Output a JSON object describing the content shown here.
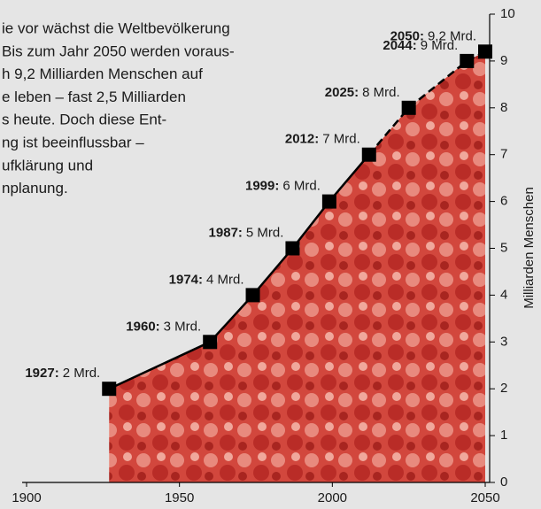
{
  "chart_data": {
    "type": "line",
    "text_lines": [
      "ie vor wächst die Weltbevölkerung",
      "Bis zum Jahr 2050 werden voraus-",
      "h 9,2 Milliarden Menschen auf",
      "e leben – fast 2,5 Milliarden",
      "s heute. Doch diese Ent-",
      "ng ist beeinflussbar –",
      "ufklärung und",
      "nplanung."
    ],
    "y_axis_label": "Milliarden Menschen",
    "x": [
      1927,
      1960,
      1974,
      1987,
      1999,
      2012,
      2025,
      2044,
      2050
    ],
    "point_labels": [
      "1927:",
      "1960:",
      "1974:",
      "1987:",
      "1999:",
      "2012:",
      "2025:",
      "2044:",
      "2050:"
    ],
    "values": [
      2,
      3,
      4,
      5,
      6,
      7,
      8,
      9,
      9.2
    ],
    "value_labels": [
      "2 Mrd.",
      "3 Mrd.",
      "4 Mrd.",
      "5 Mrd.",
      "6 Mrd.",
      "7 Mrd.",
      "8 Mrd.",
      "9 Mrd.",
      "9,2 Mrd."
    ],
    "dashed_from_x": 2012,
    "color": "#000000",
    "fill_color": "#cf3b33",
    "xlim": [
      1900,
      2050
    ],
    "xticks": [
      1900,
      1950,
      2000,
      2050
    ],
    "ylim": [
      0,
      10
    ],
    "yticks": [
      0,
      1,
      2,
      3,
      4,
      5,
      6,
      7,
      8,
      9,
      10
    ]
  }
}
